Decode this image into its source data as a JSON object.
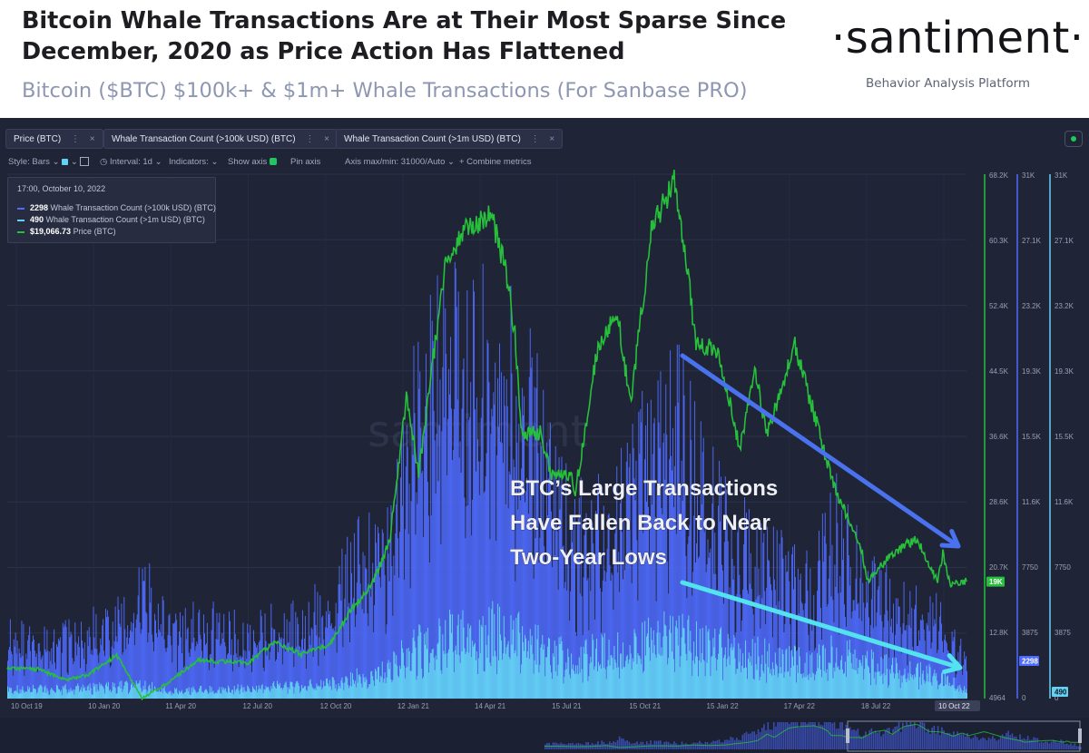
{
  "header": {
    "title": "Bitcoin Whale Transactions Are at Their Most Sparse Since December, 2020 as Price Action Has Flattened",
    "subtitle": "Bitcoin ($BTC) $100k+ & $1m+ Whale Transactions (For Sanbase PRO)",
    "logo_name": "·santiment·",
    "logo_tagline": "Behavior Analysis Platform"
  },
  "metric_chips": [
    {
      "label": "Price (BTC)",
      "color": "#26c03a"
    },
    {
      "label": "Whale Transaction Count (>100k USD) (BTC)",
      "color": "#4f6bff"
    },
    {
      "label": "Whale Transaction Count (>1m USD) (BTC)",
      "color": "#63d2f2"
    }
  ],
  "chip_controls": {
    "more": "⋮",
    "close": "×"
  },
  "options": {
    "style": "Style: Bars",
    "interval": "Interval: 1d",
    "indicators": "Indicators:",
    "show_axis": "Show axis",
    "pin_axis": "Pin axis",
    "axis_max_min": "Axis max/min: 31000/Auto",
    "combine": "+ Combine metrics"
  },
  "tooltip": {
    "date": "17:00, October 10, 2022",
    "rows": [
      {
        "value": "2298",
        "label": "Whale Transaction Count (>100k USD) (BTC)",
        "color": "#4f6bff"
      },
      {
        "value": "490",
        "label": "Whale Transaction Count (>1m USD) (BTC)",
        "color": "#63d2f2"
      },
      {
        "value": "$19,066.73",
        "label": "Price (BTC)",
        "color": "#26c03a"
      }
    ]
  },
  "annotation": {
    "lines": [
      "BTC’s Large Transactions",
      "Have Fallen Back to Near",
      "Two-Year Lows"
    ]
  },
  "colors": {
    "background": "#1f2437",
    "price": "#26c03a",
    "whale_100k": "#4f6bff",
    "whale_1m": "#63d2f2",
    "arrow_upper": "#4a72ee",
    "arrow_lower": "#52e3ee",
    "axis_text": "#9aa0b4"
  },
  "chart_data": {
    "type": "bar",
    "x_ticks": [
      "10 Oct 19",
      "10 Jan 20",
      "11 Apr 20",
      "12 Jul 20",
      "12 Oct 20",
      "12 Jan 21",
      "14 Apr 21",
      "15 Jul 21",
      "15 Oct 21",
      "15 Jan 22",
      "17 Apr 22",
      "18 Jul 22",
      "10 Oct 22"
    ],
    "x_range": [
      "2019-10-10",
      "2022-10-10"
    ],
    "price_axis": {
      "ticks": [
        "68.2K",
        "60.3K",
        "52.4K",
        "44.5K",
        "36.6K",
        "28.6K",
        "20.7K",
        "12.8K",
        "4964"
      ],
      "range": [
        4964,
        68200
      ],
      "current_label": "19K",
      "current": 19066.73
    },
    "whale100k_axis": {
      "ticks": [
        "31K",
        "27.1K",
        "23.2K",
        "19.3K",
        "15.5K",
        "11.6K",
        "7750",
        "3875",
        "0"
      ],
      "range": [
        0,
        31000
      ],
      "current_label": "2298"
    },
    "whale1m_axis": {
      "ticks": [
        "31K",
        "27.1K",
        "23.2K",
        "19.3K",
        "15.5K",
        "11.6K",
        "7750",
        "3875",
        "0"
      ],
      "range": [
        0,
        31000
      ],
      "current_label": "490"
    },
    "grid": true,
    "series": [
      {
        "name": "Price (BTC)",
        "kind": "line",
        "points": [
          [
            "2019-10-10",
            8600
          ],
          [
            "2019-11-15",
            8500
          ],
          [
            "2019-12-15",
            7200
          ],
          [
            "2020-01-10",
            7800
          ],
          [
            "2020-02-12",
            10200
          ],
          [
            "2020-03-12",
            5000
          ],
          [
            "2020-04-11",
            6900
          ],
          [
            "2020-05-15",
            9600
          ],
          [
            "2020-06-15",
            9400
          ],
          [
            "2020-07-12",
            9300
          ],
          [
            "2020-08-10",
            11800
          ],
          [
            "2020-09-10",
            10300
          ],
          [
            "2020-10-12",
            11500
          ],
          [
            "2020-11-05",
            15500
          ],
          [
            "2020-12-01",
            19000
          ],
          [
            "2020-12-20",
            24000
          ],
          [
            "2021-01-08",
            41000
          ],
          [
            "2021-01-22",
            32000
          ],
          [
            "2021-02-21",
            57000
          ],
          [
            "2021-03-13",
            61000
          ],
          [
            "2021-04-14",
            63500
          ],
          [
            "2021-05-01",
            57000
          ],
          [
            "2021-05-12",
            49000
          ],
          [
            "2021-05-19",
            37000
          ],
          [
            "2021-06-10",
            37000
          ],
          [
            "2021-06-22",
            32000
          ],
          [
            "2021-07-15",
            31800
          ],
          [
            "2021-07-20",
            29800
          ],
          [
            "2021-08-14",
            47000
          ],
          [
            "2021-09-06",
            51500
          ],
          [
            "2021-09-21",
            40500
          ],
          [
            "2021-10-15",
            61500
          ],
          [
            "2021-11-10",
            67500
          ],
          [
            "2021-11-25",
            57000
          ],
          [
            "2021-12-04",
            48000
          ],
          [
            "2021-12-28",
            47000
          ],
          [
            "2022-01-10",
            41800
          ],
          [
            "2022-01-24",
            35000
          ],
          [
            "2022-02-10",
            44500
          ],
          [
            "2022-02-24",
            37000
          ],
          [
            "2022-03-28",
            47500
          ],
          [
            "2022-04-17",
            40000
          ],
          [
            "2022-05-10",
            31000
          ],
          [
            "2022-06-13",
            22500
          ],
          [
            "2022-06-18",
            19000
          ],
          [
            "2022-07-18",
            22500
          ],
          [
            "2022-08-14",
            24300
          ],
          [
            "2022-09-07",
            19000
          ],
          [
            "2022-09-13",
            22500
          ],
          [
            "2022-09-21",
            18800
          ],
          [
            "2022-10-10",
            19066
          ]
        ]
      },
      {
        "name": "Whale Transaction Count (>100k USD) (BTC)",
        "kind": "bar",
        "points": [
          [
            "2019-10-10",
            4000
          ],
          [
            "2019-12-10",
            3600
          ],
          [
            "2020-01-10",
            4300
          ],
          [
            "2020-03-01",
            5200
          ],
          [
            "2020-03-12",
            7500
          ],
          [
            "2020-04-11",
            4200
          ],
          [
            "2020-05-15",
            4800
          ],
          [
            "2020-07-12",
            4200
          ],
          [
            "2020-09-10",
            5000
          ],
          [
            "2020-10-12",
            6000
          ],
          [
            "2020-11-10",
            8500
          ],
          [
            "2020-12-15",
            10000
          ],
          [
            "2021-01-12",
            16800
          ],
          [
            "2021-02-10",
            20000
          ],
          [
            "2021-03-01",
            24000
          ],
          [
            "2021-03-14",
            20000
          ],
          [
            "2021-04-14",
            22000
          ],
          [
            "2021-05-01",
            20000
          ],
          [
            "2021-05-19",
            19000
          ],
          [
            "2021-06-20",
            15000
          ],
          [
            "2021-07-15",
            10000
          ],
          [
            "2021-08-20",
            11500
          ],
          [
            "2021-09-15",
            12500
          ],
          [
            "2021-10-15",
            16000
          ],
          [
            "2021-11-10",
            18000
          ],
          [
            "2021-12-05",
            14000
          ],
          [
            "2022-01-15",
            10000
          ],
          [
            "2022-02-15",
            9000
          ],
          [
            "2022-03-15",
            8000
          ],
          [
            "2022-04-17",
            7000
          ],
          [
            "2022-05-12",
            11000
          ],
          [
            "2022-06-15",
            7500
          ],
          [
            "2022-07-18",
            6000
          ],
          [
            "2022-09-10",
            5000
          ],
          [
            "2022-10-10",
            2298
          ]
        ]
      },
      {
        "name": "Whale Transaction Count (>1m USD) (BTC)",
        "kind": "bar",
        "points": [
          [
            "2019-10-10",
            600
          ],
          [
            "2020-01-10",
            700
          ],
          [
            "2020-03-12",
            900
          ],
          [
            "2020-04-11",
            500
          ],
          [
            "2020-07-12",
            700
          ],
          [
            "2020-10-12",
            1000
          ],
          [
            "2020-12-15",
            1800
          ],
          [
            "2021-01-12",
            3200
          ],
          [
            "2021-02-20",
            4000
          ],
          [
            "2021-04-14",
            4500
          ],
          [
            "2021-05-19",
            4300
          ],
          [
            "2021-06-20",
            3200
          ],
          [
            "2021-07-15",
            2500
          ],
          [
            "2021-08-20",
            3200
          ],
          [
            "2021-09-15",
            3500
          ],
          [
            "2021-10-15",
            3900
          ],
          [
            "2021-11-10",
            4100
          ],
          [
            "2021-12-05",
            3600
          ],
          [
            "2022-01-15",
            3100
          ],
          [
            "2022-02-15",
            2900
          ],
          [
            "2022-03-15",
            2600
          ],
          [
            "2022-04-17",
            2300
          ],
          [
            "2022-05-12",
            3000
          ],
          [
            "2022-06-15",
            2400
          ],
          [
            "2022-07-18",
            1900
          ],
          [
            "2022-09-10",
            1500
          ],
          [
            "2022-10-10",
            490
          ]
        ]
      }
    ]
  }
}
